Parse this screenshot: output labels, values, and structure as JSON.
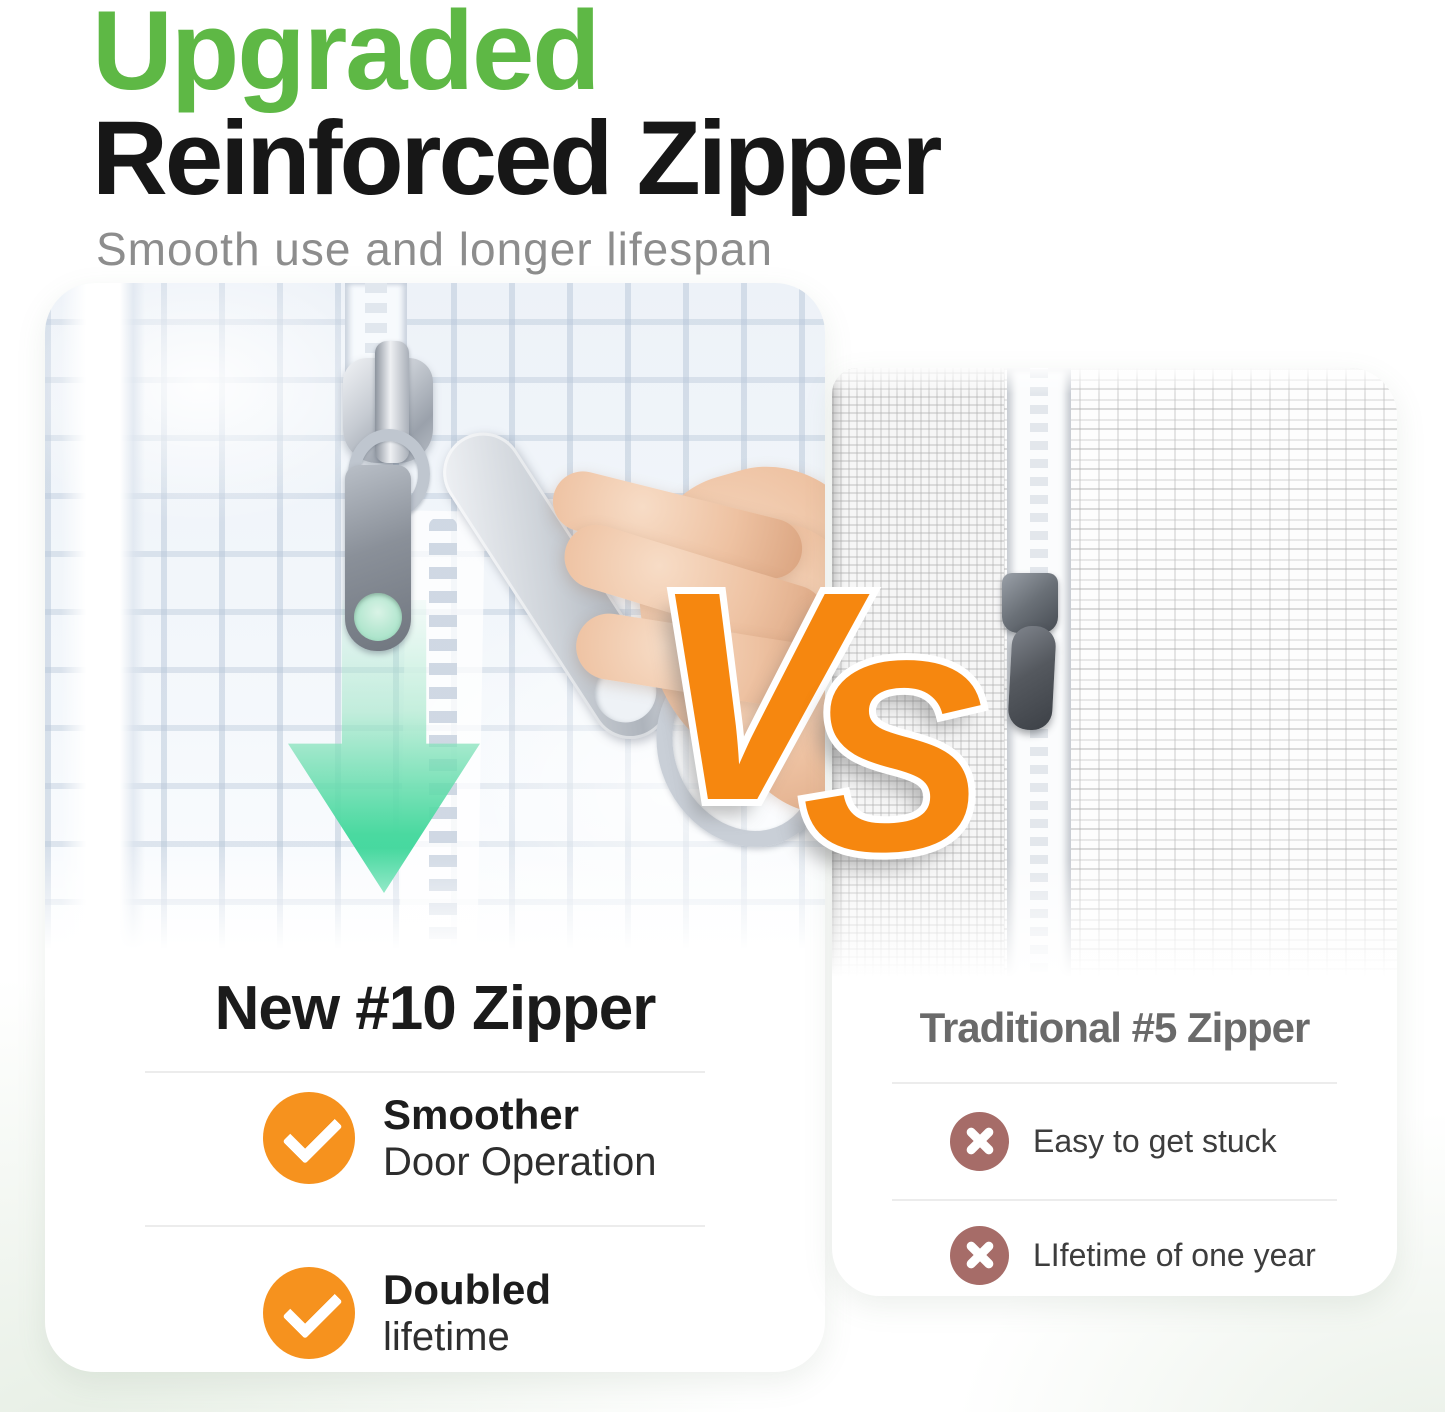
{
  "header": {
    "title_line1": "Upgraded",
    "title_line2": "Reinforced Zipper",
    "subtitle": "Smooth use and longer lifespan"
  },
  "vs": {
    "v": "V",
    "s": "S"
  },
  "left_card": {
    "heading": "New #10 Zipper",
    "items": [
      {
        "title": "Smoother",
        "subtitle": "Door Operation"
      },
      {
        "title": "Doubled",
        "subtitle": "lifetime"
      }
    ]
  },
  "right_card": {
    "heading": "Traditional #5 Zipper",
    "items": [
      {
        "label": "Easy to get stuck"
      },
      {
        "label": "LIfetime of one year"
      }
    ]
  },
  "colors": {
    "accent_green": "#5EB845",
    "accent_orange_vs": "#F6870F",
    "check_circle": "#F6921E",
    "cross_circle": "#A66C68",
    "arrow_teal": "#3FD79D",
    "heading_dark": "#171717",
    "heading_gray": "#6A6A6A",
    "subtitle_gray": "#8D8D8D"
  }
}
